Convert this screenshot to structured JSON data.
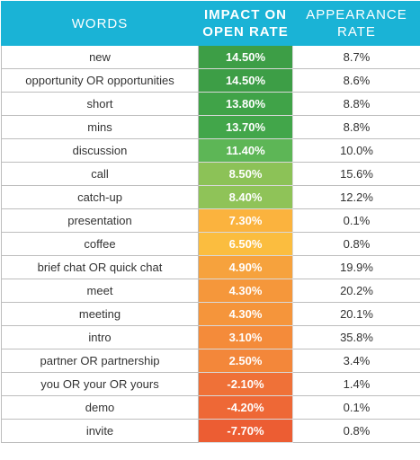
{
  "chart_data": {
    "type": "table",
    "columns": [
      "WORDS",
      "IMPACT ON OPEN RATE",
      "APPEARANCE RATE"
    ],
    "rows": [
      {
        "word": "new",
        "impact": "14.50%",
        "rate": "8.7%",
        "color": "#3d9e46"
      },
      {
        "word": "opportunity OR opportunities",
        "impact": "14.50%",
        "rate": "8.6%",
        "color": "#3d9e46"
      },
      {
        "word": "short",
        "impact": "13.80%",
        "rate": "8.8%",
        "color": "#40a348"
      },
      {
        "word": "mins",
        "impact": "13.70%",
        "rate": "8.8%",
        "color": "#42a64a"
      },
      {
        "word": "discussion",
        "impact": "11.40%",
        "rate": "10.0%",
        "color": "#5db656"
      },
      {
        "word": "call",
        "impact": "8.50%",
        "rate": "15.6%",
        "color": "#8cc257"
      },
      {
        "word": "catch-up",
        "impact": "8.40%",
        "rate": "12.2%",
        "color": "#8fc358"
      },
      {
        "word": "presentation",
        "impact": "7.30%",
        "rate": "0.1%",
        "color": "#fbb33e"
      },
      {
        "word": "coffee",
        "impact": "6.50%",
        "rate": "0.8%",
        "color": "#fbbd3f"
      },
      {
        "word": "brief chat OR quick chat",
        "impact": "4.90%",
        "rate": "19.9%",
        "color": "#f6a23d"
      },
      {
        "word": "meet",
        "impact": "4.30%",
        "rate": "20.2%",
        "color": "#f5973b"
      },
      {
        "word": "meeting",
        "impact": "4.30%",
        "rate": "20.1%",
        "color": "#f5953b"
      },
      {
        "word": "intro",
        "impact": "3.10%",
        "rate": "35.8%",
        "color": "#f48b3a"
      },
      {
        "word": "partner OR partnership",
        "impact": "2.50%",
        "rate": "3.4%",
        "color": "#f3873a"
      },
      {
        "word": "you OR your OR yours",
        "impact": "-2.10%",
        "rate": "1.4%",
        "color": "#ef7138"
      },
      {
        "word": "demo",
        "impact": "-4.20%",
        "rate": "0.1%",
        "color": "#ee6836"
      },
      {
        "word": "invite",
        "impact": "-7.70%",
        "rate": "0.8%",
        "color": "#ec5d33"
      }
    ]
  }
}
